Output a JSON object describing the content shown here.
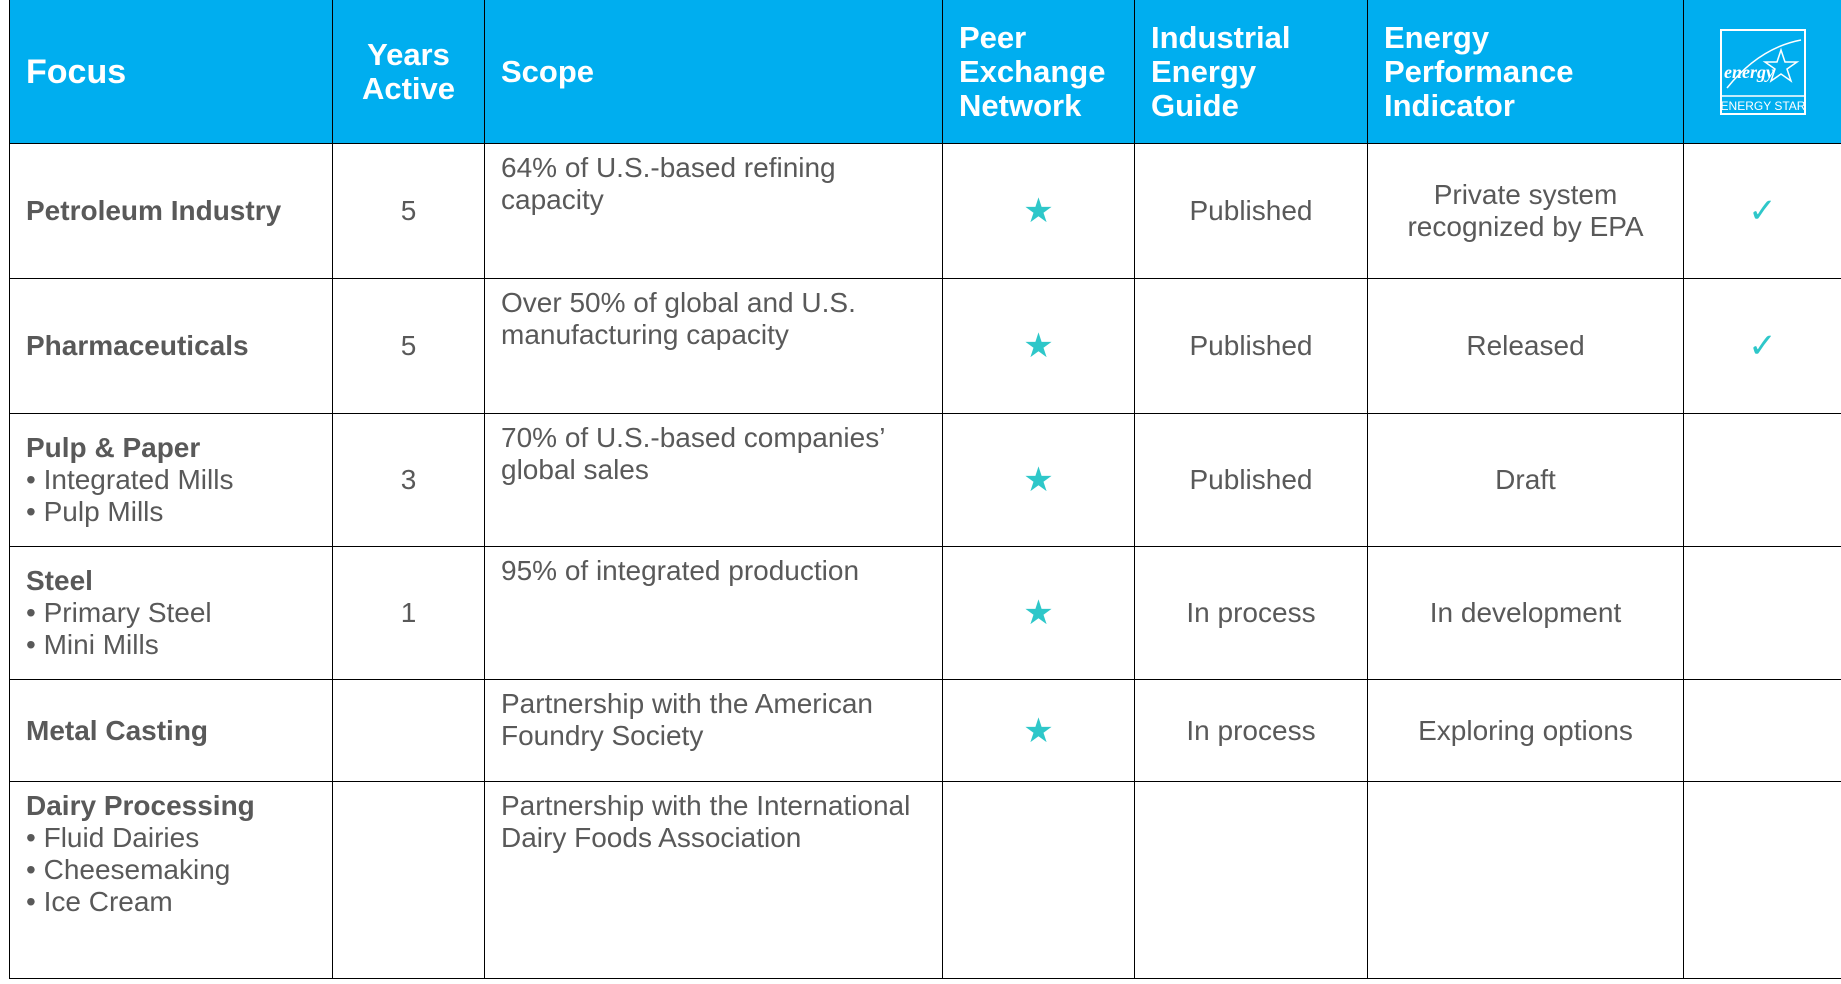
{
  "table": {
    "header": [
      "Focus",
      "Years Active",
      "Scope",
      "Peer Exchange Network",
      "Industrial Energy Guide",
      "Energy Performance Indicator"
    ],
    "logo": {
      "script": "energy",
      "label": "ENERGY STAR"
    },
    "rows": [
      [
        {
          "title": "Petroleum Industry",
          "items": []
        },
        5,
        "64% of U.S.-based refining capacity",
        "★",
        "Published",
        "Private system recognized by EPA",
        "✓"
      ],
      [
        {
          "title": "Pharmaceuticals",
          "items": []
        },
        5,
        "Over 50% of global and U.S. manufacturing capacity",
        "★",
        "Published",
        "Released",
        "✓"
      ],
      [
        {
          "title": "Pulp & Paper",
          "items": [
            "Integrated Mills",
            "Pulp Mills"
          ]
        },
        3,
        "70% of U.S.-based companies’ global sales",
        "★",
        "Published",
        "Draft",
        null
      ],
      [
        {
          "title": "Steel",
          "items": [
            "Primary Steel",
            "Mini Mills"
          ]
        },
        1,
        "95% of integrated production",
        "★",
        "In process",
        "In development",
        null
      ],
      [
        {
          "title": "Metal Casting",
          "items": []
        },
        null,
        "Partnership with the American Foundry Society",
        "★",
        "In process",
        "Exploring options",
        null
      ],
      [
        {
          "title": "Dairy Processing",
          "items": [
            "Fluid Dairies",
            "Cheesemaking",
            "Ice Cream"
          ]
        },
        null,
        "Partnership with the International Dairy Foods Association",
        null,
        null,
        null,
        null
      ]
    ]
  }
}
